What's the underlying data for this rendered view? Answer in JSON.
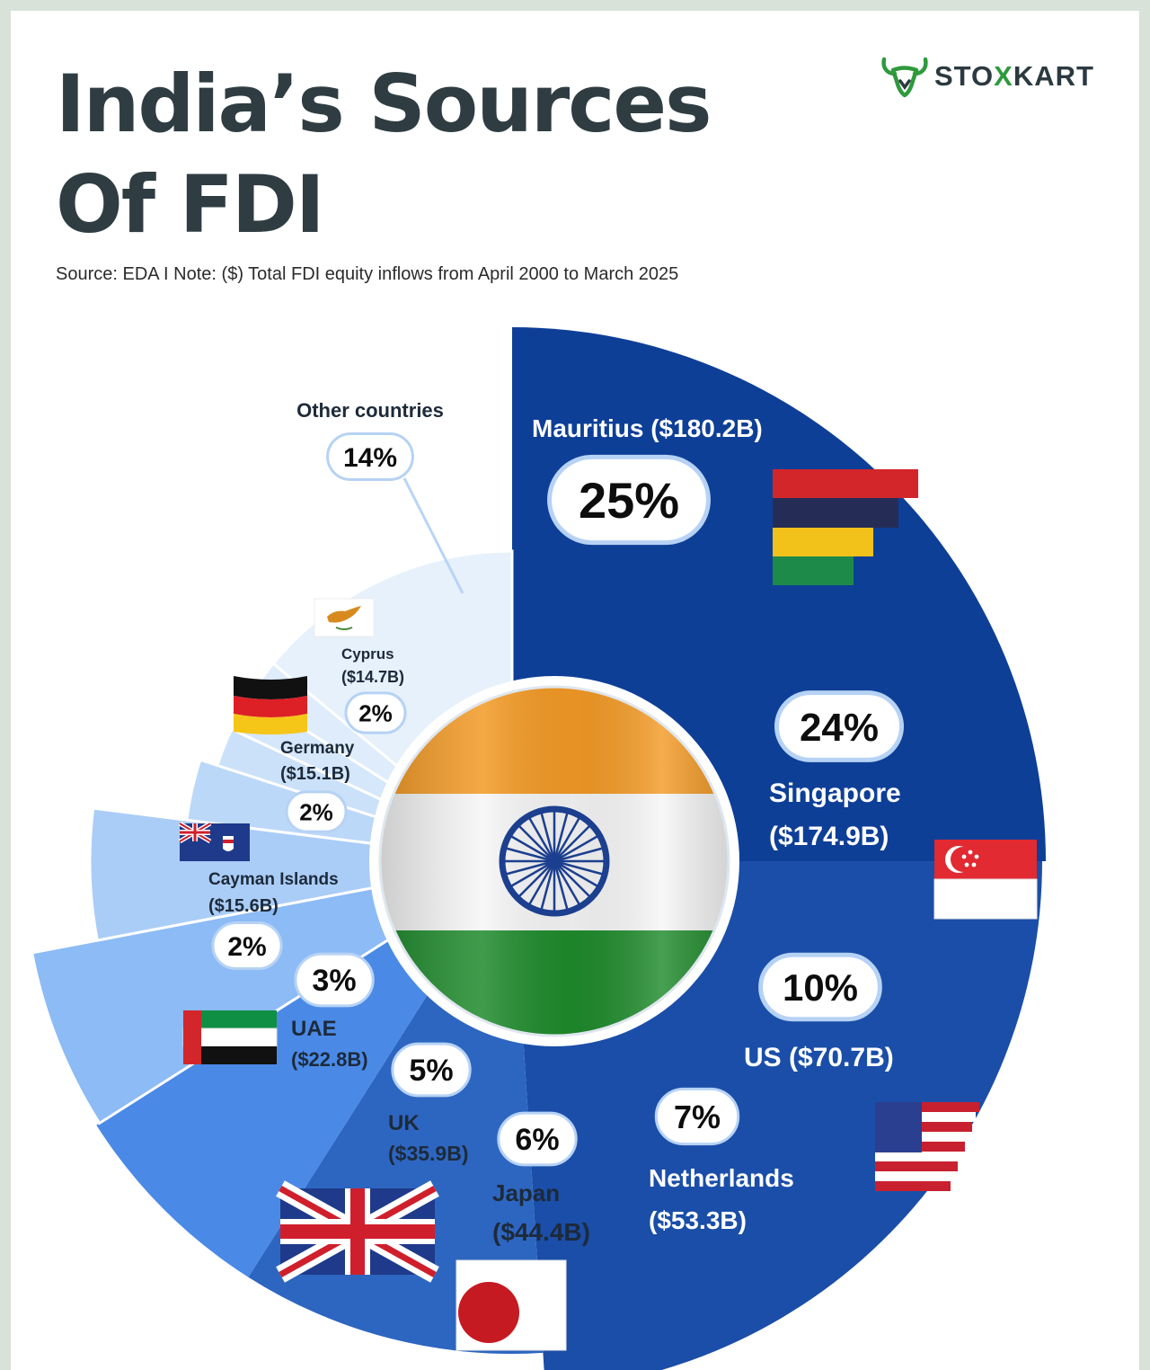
{
  "header": {
    "title_line1": "India’s Sources",
    "title_line2": "Of FDI",
    "source_note": "Source: EDA I Note: ($) Total FDI equity inflows from April 2000 to March 2025"
  },
  "brand": {
    "logo_icon": "bull-head-icon",
    "name_part1": "STO",
    "name_x": "X",
    "name_part2": "KART",
    "accent_color": "#2e9a3c"
  },
  "chart_data": {
    "type": "pie",
    "title": "India’s Sources Of FDI",
    "unit": "USD billion, total FDI equity inflows April 2000 – March 2025",
    "center_image": "india-flag",
    "slices": [
      {
        "name": "Mauritius",
        "value_label": "($180.2B)",
        "value": 180.2,
        "percent": 25,
        "percent_label": "25%",
        "color": "#0e3f97",
        "flag": "mauritius-flag"
      },
      {
        "name": "Singapore",
        "value_label": "($174.9B)",
        "value": 174.9,
        "percent": 24,
        "percent_label": "24%",
        "color": "#1a4ea8",
        "flag": "singapore-flag"
      },
      {
        "name": "US",
        "value_label": "($70.7B)",
        "value": 70.7,
        "percent": 10,
        "percent_label": "10%",
        "color": "#2d66c0",
        "flag": "usa-flag"
      },
      {
        "name": "Netherlands",
        "value_label": "($53.3B)",
        "value": 53.3,
        "percent": 7,
        "percent_label": "7%",
        "color": "#4a8ae6",
        "flag": ""
      },
      {
        "name": "Japan",
        "value_label": "($44.4B)",
        "value": 44.4,
        "percent": 6,
        "percent_label": "6%",
        "color": "#8cbbf5",
        "flag": "japan-flag"
      },
      {
        "name": "UK",
        "value_label": "($35.9B)",
        "value": 35.9,
        "percent": 5,
        "percent_label": "5%",
        "color": "#aacdf7",
        "flag": "uk-flag"
      },
      {
        "name": "UAE",
        "value_label": "($22.8B)",
        "value": 22.8,
        "percent": 3,
        "percent_label": "3%",
        "color": "#bcd8f8",
        "flag": "uae-flag"
      },
      {
        "name": "Cayman Islands",
        "value_label": "($15.6B)",
        "value": 15.6,
        "percent": 2,
        "percent_label": "2%",
        "color": "#cbe1f9",
        "flag": "cayman-islands-flag"
      },
      {
        "name": "Germany",
        "value_label": "($15.1B)",
        "value": 15.1,
        "percent": 2,
        "percent_label": "2%",
        "color": "#d5e7fa",
        "flag": "germany-flag"
      },
      {
        "name": "Cyprus",
        "value_label": "($14.7B)",
        "value": 14.7,
        "percent": 2,
        "percent_label": "2%",
        "color": "#deecfb",
        "flag": "cyprus-flag"
      },
      {
        "name": "Other countries",
        "value_label": "",
        "value": null,
        "percent": 14,
        "percent_label": "14%",
        "color": "#e6f1fc",
        "flag": ""
      }
    ]
  }
}
